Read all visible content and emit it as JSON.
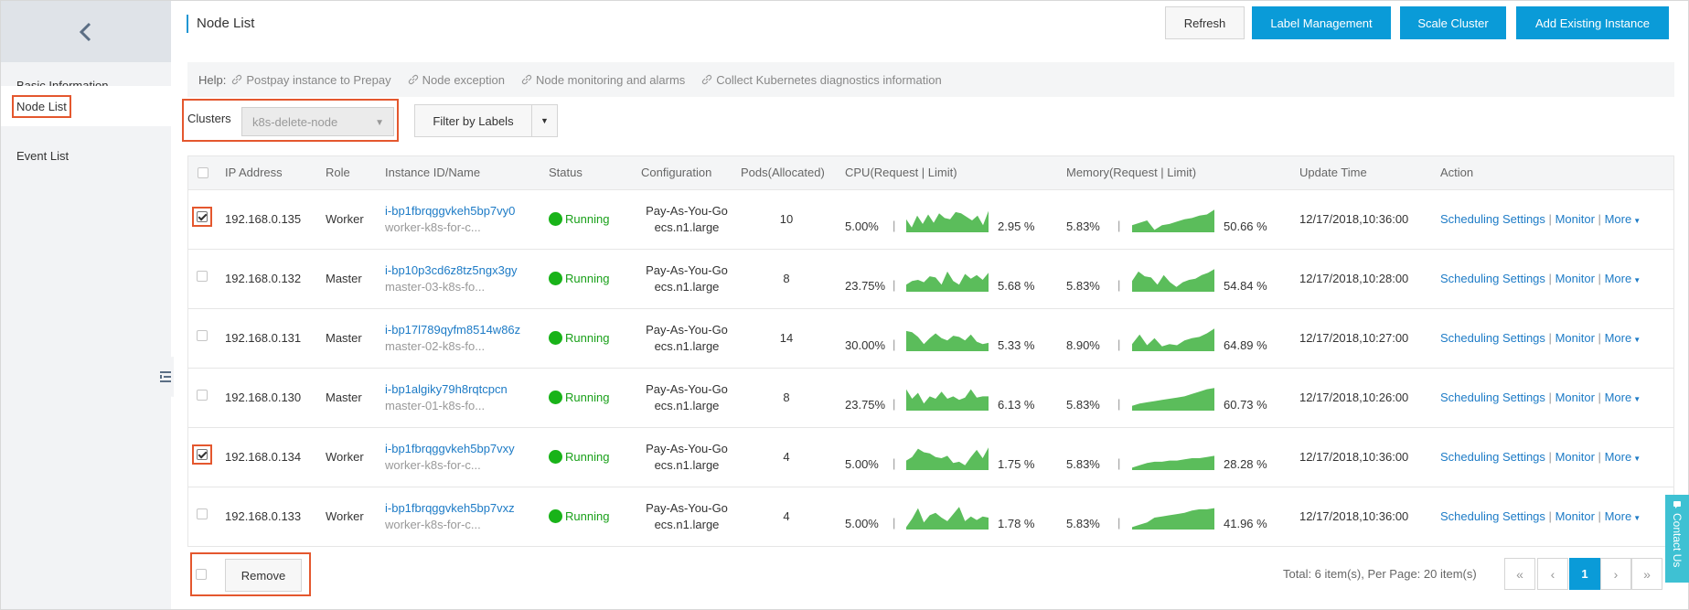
{
  "sidebar": {
    "items": [
      {
        "label": "Basic Information"
      },
      {
        "label": "Node List"
      },
      {
        "label": "Event List"
      }
    ]
  },
  "header": {
    "title": "Node List",
    "refresh_label": "Refresh",
    "label_mgmt_label": "Label Management",
    "scale_label": "Scale Cluster",
    "add_instance_label": "Add Existing Instance"
  },
  "help": {
    "label": "Help:",
    "links": [
      "Postpay instance to Prepay",
      "Node exception",
      "Node monitoring and alarms",
      "Collect Kubernetes diagnostics information"
    ]
  },
  "filters": {
    "clusters_label": "Clusters",
    "cluster_value": "k8s-delete-node",
    "filter_by_labels": "Filter by Labels"
  },
  "table": {
    "headers": [
      "IP Address",
      "Role",
      "Instance ID/Name",
      "Status",
      "Configuration",
      "Pods(Allocated)",
      "CPU(Request | Limit)",
      "Memory(Request | Limit)",
      "Update Time",
      "Action"
    ],
    "rows": [
      {
        "checked": true,
        "ip": "192.168.0.135",
        "role": "Worker",
        "id": "i-bp1fbrqggvkeh5bp7vy0",
        "name": "worker-k8s-for-c...",
        "status": "Running",
        "billing": "Pay-As-You-Go",
        "spec": "ecs.n1.large",
        "pods": "10",
        "cpu_req": "5.00%",
        "cpu_limit": "2.95 %",
        "mem_req": "5.83%",
        "mem_limit": "50.66 %",
        "time": "12/17/2018,10:36:00",
        "cpu_spark": [
          0.55,
          0.2,
          0.7,
          0.35,
          0.75,
          0.4,
          0.8,
          0.6,
          0.55,
          0.85,
          0.8,
          0.65,
          0.5,
          0.7,
          0.3,
          0.9
        ],
        "mem_spark": [
          0.3,
          0.4,
          0.5,
          0.1,
          0.3,
          0.35,
          0.45,
          0.55,
          0.6,
          0.7,
          0.75,
          0.95
        ]
      },
      {
        "checked": false,
        "ip": "192.168.0.132",
        "role": "Master",
        "id": "i-bp10p3cd6z8tz5ngx3gy",
        "name": "master-03-k8s-fo...",
        "status": "Running",
        "billing": "Pay-As-You-Go",
        "spec": "ecs.n1.large",
        "pods": "8",
        "cpu_req": "23.75%",
        "cpu_limit": "5.68 %",
        "mem_req": "5.83%",
        "mem_limit": "54.84 %",
        "time": "12/17/2018,10:28:00",
        "cpu_spark": [
          0.3,
          0.45,
          0.5,
          0.4,
          0.65,
          0.6,
          0.3,
          0.85,
          0.45,
          0.3,
          0.75,
          0.55,
          0.7,
          0.5,
          0.8
        ],
        "mem_spark": [
          0.45,
          0.85,
          0.65,
          0.6,
          0.3,
          0.7,
          0.4,
          0.2,
          0.4,
          0.5,
          0.55,
          0.7,
          0.8,
          0.95
        ]
      },
      {
        "checked": false,
        "ip": "192.168.0.131",
        "role": "Master",
        "id": "i-bp17l789qyfm8514w86z",
        "name": "master-02-k8s-fo...",
        "status": "Running",
        "billing": "Pay-As-You-Go",
        "spec": "ecs.n1.large",
        "pods": "14",
        "cpu_req": "30.00%",
        "cpu_limit": "5.33 %",
        "mem_req": "8.90%",
        "mem_limit": "64.89 %",
        "time": "12/17/2018,10:27:00",
        "cpu_spark": [
          0.85,
          0.8,
          0.6,
          0.3,
          0.55,
          0.75,
          0.55,
          0.45,
          0.65,
          0.6,
          0.45,
          0.7,
          0.4,
          0.3,
          0.35
        ],
        "mem_spark": [
          0.3,
          0.7,
          0.25,
          0.55,
          0.2,
          0.3,
          0.25,
          0.45,
          0.55,
          0.6,
          0.75,
          0.95
        ]
      },
      {
        "checked": false,
        "ip": "192.168.0.130",
        "role": "Master",
        "id": "i-bp1algiky79h8rqtcpcn",
        "name": "master-01-k8s-fo...",
        "status": "Running",
        "billing": "Pay-As-You-Go",
        "spec": "ecs.n1.large",
        "pods": "8",
        "cpu_req": "23.75%",
        "cpu_limit": "6.13 %",
        "mem_req": "5.83%",
        "mem_limit": "60.73 %",
        "time": "12/17/2018,10:26:00",
        "cpu_spark": [
          0.9,
          0.5,
          0.75,
          0.3,
          0.6,
          0.5,
          0.8,
          0.5,
          0.6,
          0.45,
          0.55,
          0.9,
          0.55,
          0.6,
          0.6
        ],
        "mem_spark": [
          0.2,
          0.3,
          0.35,
          0.4,
          0.45,
          0.5,
          0.55,
          0.6,
          0.7,
          0.8,
          0.9,
          0.95
        ]
      },
      {
        "checked": true,
        "ip": "192.168.0.134",
        "role": "Worker",
        "id": "i-bp1fbrqggvkeh5bp7vxy",
        "name": "worker-k8s-for-c...",
        "status": "Running",
        "billing": "Pay-As-You-Go",
        "spec": "ecs.n1.large",
        "pods": "4",
        "cpu_req": "5.00%",
        "cpu_limit": "1.75 %",
        "mem_req": "5.83%",
        "mem_limit": "28.28 %",
        "time": "12/17/2018,10:36:00",
        "cpu_spark": [
          0.4,
          0.55,
          0.9,
          0.75,
          0.7,
          0.55,
          0.5,
          0.6,
          0.3,
          0.35,
          0.2,
          0.55,
          0.85,
          0.5,
          0.95
        ],
        "mem_spark": [
          0.1,
          0.2,
          0.3,
          0.35,
          0.35,
          0.4,
          0.4,
          0.45,
          0.5,
          0.5,
          0.55,
          0.6
        ]
      },
      {
        "checked": false,
        "ip": "192.168.0.133",
        "role": "Worker",
        "id": "i-bp1fbrqggvkeh5bp7vxz",
        "name": "worker-k8s-for-c...",
        "status": "Running",
        "billing": "Pay-As-You-Go",
        "spec": "ecs.n1.large",
        "pods": "4",
        "cpu_req": "5.00%",
        "cpu_limit": "1.78 %",
        "mem_req": "5.83%",
        "mem_limit": "41.96 %",
        "time": "12/17/2018,10:36:00",
        "cpu_spark": [
          0.1,
          0.45,
          0.9,
          0.3,
          0.6,
          0.7,
          0.5,
          0.35,
          0.65,
          0.95,
          0.35,
          0.55,
          0.4,
          0.55,
          0.5
        ],
        "mem_spark": [
          0.1,
          0.2,
          0.3,
          0.5,
          0.55,
          0.6,
          0.65,
          0.7,
          0.8,
          0.85,
          0.85,
          0.9
        ]
      }
    ],
    "actions": {
      "scheduling": "Scheduling Settings",
      "monitor": "Monitor",
      "more": "More"
    }
  },
  "footer": {
    "remove_label": "Remove",
    "total_text": "Total: 6 item(s), Per Page: 20 item(s)",
    "pager": {
      "first": "«",
      "prev": "‹",
      "current": "1",
      "next": "›",
      "last": "»"
    }
  },
  "contact": {
    "label": "Contact Us"
  },
  "colors": {
    "accent": "#0a9bd8",
    "link": "#1d7bc6",
    "running": "#19b319",
    "spark": "#5bbd5b",
    "highlight": "#e4572e"
  }
}
